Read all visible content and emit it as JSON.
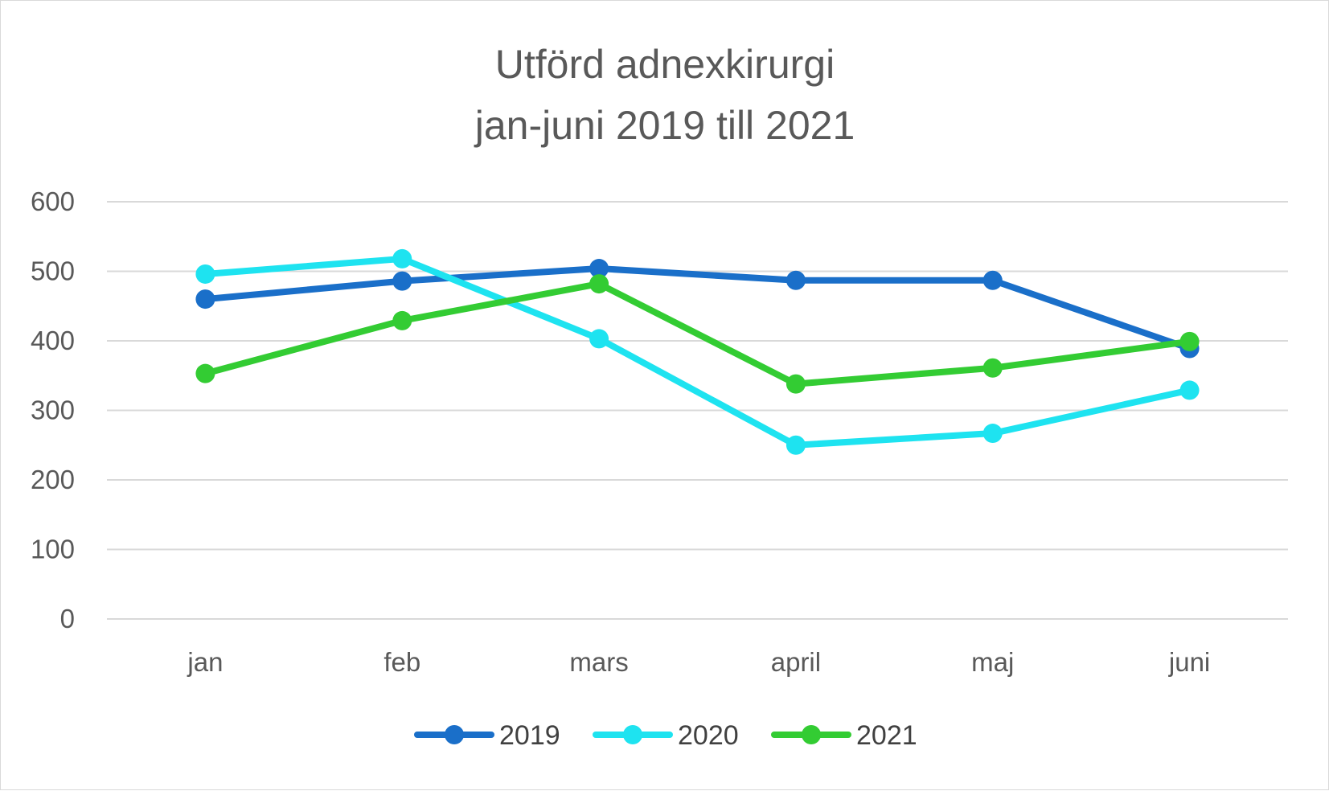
{
  "chart_data": {
    "type": "line",
    "title": [
      "Utförd adnexkirurgi",
      "jan-juni 2019 till 2021"
    ],
    "categories": [
      "jan",
      "feb",
      "mars",
      "april",
      "maj",
      "juni"
    ],
    "ylim": [
      0,
      600
    ],
    "yticks": [
      0,
      100,
      200,
      300,
      400,
      500,
      600
    ],
    "grid": true,
    "legend_position": "bottom",
    "series": [
      {
        "name": "2019",
        "color": "#1a6fc9",
        "values": [
          460,
          486,
          504,
          487,
          487,
          389
        ]
      },
      {
        "name": "2020",
        "color": "#1ee3f0",
        "values": [
          496,
          518,
          403,
          250,
          267,
          329
        ]
      },
      {
        "name": "2021",
        "color": "#33cc33",
        "values": [
          353,
          429,
          482,
          338,
          361,
          399
        ]
      }
    ]
  }
}
